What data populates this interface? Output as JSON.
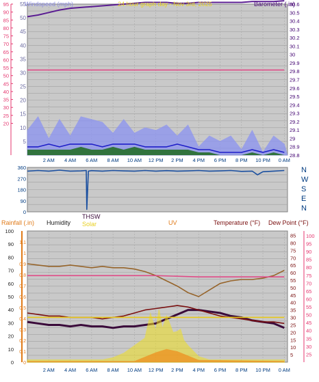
{
  "chart_data": [
    {
      "type": "line",
      "panel": "wind-barometer",
      "title": "24 hour graph day - Nov 3rd, 2025",
      "legend": [
        "Windspeed (mph)",
        "Barometer (.in)"
      ],
      "x_tick_labels": [
        "2 AM",
        "4 AM",
        "6 AM",
        "8 AM",
        "10 AM",
        "12 PM",
        "2 PM",
        "4 PM",
        "6 PM",
        "8 PM",
        "10 PM",
        "0 AM"
      ],
      "x_hours": [
        2,
        4,
        6,
        8,
        10,
        12,
        14,
        16,
        18,
        20,
        22,
        24
      ],
      "x_range": [
        0,
        24.3
      ],
      "left_axes": [
        {
          "name": "windspeed-mph",
          "color": "#6a6aa0",
          "ticks": [
            0,
            5,
            10,
            15,
            20,
            25,
            30,
            35,
            40,
            45,
            50,
            55
          ],
          "range": [
            0,
            55
          ]
        },
        {
          "name": "windspeed-kmh",
          "color": "#e4356e",
          "ticks": [
            0,
            10,
            15,
            20,
            25,
            30,
            35,
            40,
            45,
            50,
            55,
            60,
            65,
            70,
            75,
            80,
            85,
            90,
            95
          ],
          "range": [
            0,
            95
          ]
        }
      ],
      "right_axis": {
        "name": "barometer-in",
        "color": "#400070",
        "ticks": [
          28.8,
          28.9,
          29,
          29.1,
          29.2,
          29.3,
          29.4,
          29.5,
          29.6,
          29.7,
          29.8,
          29.9,
          30,
          30.1,
          30.2,
          30.3,
          30.4,
          30.5,
          30.6
        ],
        "range": [
          28.8,
          30.6
        ],
        "tick_labels": [
          "28.8",
          "28.9",
          "29",
          "29.1",
          "29.2",
          "29.3",
          "29.4",
          "29.5",
          "29.6",
          "29.7",
          "29.8",
          "29.9",
          "30",
          "30.1",
          "30.2",
          "30.3",
          "30.4",
          "30.5",
          "30.6"
        ]
      },
      "series": [
        {
          "name": "Barometer (.in)",
          "color": "#5a1c92",
          "axis": "right",
          "x": [
            0,
            1,
            2,
            3,
            4,
            5,
            6,
            7,
            8,
            9,
            10,
            11,
            12,
            13,
            14,
            15,
            16,
            17,
            18,
            19,
            20,
            21,
            22,
            23,
            24
          ],
          "y": [
            30.45,
            30.47,
            30.5,
            30.53,
            30.55,
            30.56,
            30.57,
            30.58,
            30.59,
            30.6,
            30.61,
            30.62,
            30.62,
            30.62,
            30.61,
            30.61,
            30.62,
            30.62,
            30.62,
            30.62,
            30.62,
            30.63,
            30.63,
            30.63,
            30.64
          ]
        },
        {
          "name": "",
          "color": "#e04a86",
          "axis": "left",
          "x": [
            0,
            4,
            8,
            12,
            16,
            20,
            24
          ],
          "y": [
            31,
            31,
            31,
            31,
            31,
            31,
            31
          ]
        },
        {
          "name": "",
          "color": "#8b93f2",
          "axis": "left",
          "x": [
            0,
            1,
            2,
            3,
            4,
            5,
            6,
            7,
            8,
            9,
            10,
            11,
            12,
            13,
            14,
            15,
            16,
            17,
            18,
            19,
            20,
            21,
            22,
            23,
            24
          ],
          "y": [
            9,
            11,
            8,
            9,
            10,
            12,
            13,
            9,
            10,
            9,
            11,
            8,
            9,
            8,
            9,
            7,
            6,
            5,
            5,
            4,
            4,
            5,
            4,
            5,
            4
          ]
        },
        {
          "name": "",
          "color": "#1e1ec8",
          "axis": "left",
          "x": [
            0,
            1,
            2,
            3,
            4,
            5,
            6,
            7,
            8,
            9,
            10,
            11,
            12,
            13,
            14,
            15,
            16,
            17,
            18,
            19,
            20,
            21,
            22,
            23,
            24
          ],
          "y": [
            3,
            3,
            4,
            3,
            4,
            4,
            4,
            3,
            4,
            4,
            4,
            3,
            3,
            3,
            4,
            3,
            2,
            2,
            1,
            1,
            1,
            2,
            1,
            2,
            1
          ]
        },
        {
          "name": "",
          "color": "#1e6b1e",
          "axis": "left",
          "x": [
            0,
            1,
            2,
            3,
            4,
            5,
            6,
            7,
            8,
            9,
            10,
            11,
            12,
            13,
            14,
            15,
            16,
            17,
            18,
            19,
            20,
            21,
            22,
            23,
            24
          ],
          "y": [
            2,
            2,
            2,
            2,
            2,
            3,
            2,
            2,
            3,
            2,
            3,
            2,
            2,
            2,
            2,
            2,
            1,
            1,
            0,
            0,
            0,
            1,
            0,
            1,
            0
          ]
        }
      ]
    },
    {
      "type": "line",
      "panel": "wind-direction",
      "y_ticks": [
        0,
        90,
        180,
        270,
        360
      ],
      "y_range": [
        0,
        360
      ],
      "compass": [
        "N",
        "W",
        "S",
        "E",
        "N"
      ],
      "series": [
        {
          "name": "",
          "color": "#1a4fa0",
          "x": [
            0,
            1,
            2,
            3,
            4,
            5,
            5.5,
            5.55,
            5.7,
            6,
            7,
            8,
            9,
            10,
            11,
            12,
            13,
            14,
            15,
            16,
            17,
            18,
            19,
            20,
            21,
            21.5,
            22,
            23,
            24
          ],
          "y": [
            330,
            335,
            330,
            338,
            330,
            332,
            335,
            20,
            330,
            334,
            330,
            335,
            332,
            330,
            335,
            330,
            334,
            330,
            332,
            335,
            330,
            332,
            335,
            328,
            330,
            300,
            325,
            330,
            335
          ]
        }
      ]
    },
    {
      "type": "line",
      "panel": "rain-temp-solar",
      "legend": [
        "Rainfall (.in)",
        "Humidity",
        "Solar",
        "UV",
        "Temperature (°F)",
        "Dew Point (°F)",
        "THSW"
      ],
      "x_tick_labels": [
        "2 AM",
        "4 AM",
        "6 AM",
        "8 AM",
        "10 AM",
        "12 PM",
        "2 PM",
        "4 PM",
        "6 PM",
        "8 PM",
        "10 PM",
        "0 AM"
      ],
      "x_hours": [
        2,
        4,
        6,
        8,
        10,
        12,
        14,
        16,
        18,
        20,
        22,
        24
      ],
      "x_range": [
        0,
        24.3
      ],
      "left_axes": [
        {
          "name": "humidity",
          "color": "#1a1a1a",
          "ticks": [
            0,
            10,
            20,
            30,
            40,
            50,
            60,
            70,
            80,
            90,
            100
          ],
          "range": [
            0,
            100
          ]
        },
        {
          "name": "rainfall-in",
          "color": "#e07a18",
          "ticks": [
            0,
            0.1,
            0.2,
            0.3,
            0.4,
            0.5,
            0.6,
            0.7,
            0.8,
            0.9,
            1,
            1.1
          ],
          "tick_labels": [
            "0",
            "0.1",
            "0.2",
            "0.3",
            "0.4",
            "0.5",
            "0.6",
            "0.7",
            "0.8",
            "0.9",
            "1",
            "1.1"
          ],
          "range": [
            0,
            1.2
          ]
        }
      ],
      "right_axes": [
        {
          "name": "temperature-f",
          "color": "#7a1010",
          "ticks": [
            5,
            10,
            15,
            20,
            25,
            30,
            35,
            40,
            45,
            50,
            55,
            60,
            65,
            70,
            75,
            80,
            85
          ],
          "range": [
            0,
            88
          ]
        },
        {
          "name": "dewpoint-f",
          "color": "#e4356e",
          "ticks": [
            25,
            30,
            35,
            40,
            45,
            50,
            55,
            60,
            65,
            70,
            75,
            80,
            85,
            90,
            95,
            100
          ],
          "range": [
            20,
            103
          ]
        }
      ],
      "series": [
        {
          "name": "Humidity",
          "color": "#96642a",
          "axis": "humidity",
          "x": [
            0,
            1,
            2,
            3,
            4,
            5,
            6,
            7,
            8,
            9,
            10,
            11,
            12,
            13,
            14,
            15,
            16,
            17,
            18,
            19,
            20,
            21,
            22,
            23,
            24
          ],
          "y": [
            75,
            74,
            73,
            73,
            74,
            73,
            72,
            73,
            72,
            72,
            71,
            69,
            66,
            62,
            58,
            53,
            50,
            55,
            60,
            62,
            63,
            63,
            64,
            66,
            70
          ]
        },
        {
          "name": "",
          "color": "#e04a86",
          "axis": "humidity",
          "x": [
            0,
            4,
            8,
            12,
            16,
            20,
            24
          ],
          "y": [
            66,
            66,
            66,
            66,
            65,
            65,
            65
          ]
        },
        {
          "name": "Dew Point (°F)",
          "color": "#3a0a3a",
          "axis": "temperature",
          "x": [
            0,
            1,
            2,
            3,
            4,
            5,
            6,
            7,
            8,
            9,
            10,
            11,
            12,
            13,
            14,
            15,
            16,
            17,
            18,
            19,
            20,
            21,
            22,
            23,
            24
          ],
          "y": [
            27,
            26,
            25,
            25,
            24,
            25,
            24,
            24,
            23,
            24,
            24,
            25,
            26,
            29,
            32,
            35,
            35,
            34,
            33,
            31,
            30,
            28,
            27,
            26,
            23
          ]
        },
        {
          "name": "THSW",
          "color": "#7a1010",
          "axis": "temperature",
          "x": [
            0,
            1,
            2,
            3,
            4,
            5,
            6,
            7,
            8,
            9,
            10,
            11,
            12,
            13,
            14,
            15,
            16,
            17,
            18,
            19,
            20,
            21,
            22,
            23,
            24
          ],
          "y": [
            33,
            32,
            31,
            31,
            30,
            30,
            30,
            29,
            30,
            31,
            33,
            35,
            36,
            37,
            38,
            37,
            35,
            33,
            31,
            30,
            29,
            28,
            27,
            27,
            26
          ]
        },
        {
          "name": "Solar",
          "color": "#f0e020",
          "axis": "rainfall",
          "x": [
            0,
            7,
            8,
            9,
            10,
            11,
            11.5,
            12,
            12.3,
            12.6,
            13,
            13.3,
            13.6,
            14,
            14.3,
            14.6,
            15,
            16,
            17,
            24
          ],
          "y": [
            0.02,
            0.02,
            0.04,
            0.08,
            0.15,
            0.22,
            0.44,
            0.28,
            0.48,
            0.3,
            0.42,
            0.35,
            0.27,
            0.28,
            0.3,
            0.2,
            0.15,
            0.05,
            0.02,
            0.02
          ]
        },
        {
          "name": "UV",
          "color": "#f08a1a",
          "axis": "rainfall",
          "x": [
            0,
            10,
            11,
            12,
            13,
            14,
            15,
            16,
            24
          ],
          "y": [
            0.01,
            0.01,
            0.05,
            0.09,
            0.12,
            0.1,
            0.06,
            0.02,
            0.01
          ]
        },
        {
          "name": "Rainfall (.in)",
          "color": "#e8c818",
          "axis": "rainfall",
          "x": [
            0,
            8,
            24
          ],
          "y": [
            0.41,
            0.41,
            0.41
          ]
        }
      ]
    }
  ]
}
